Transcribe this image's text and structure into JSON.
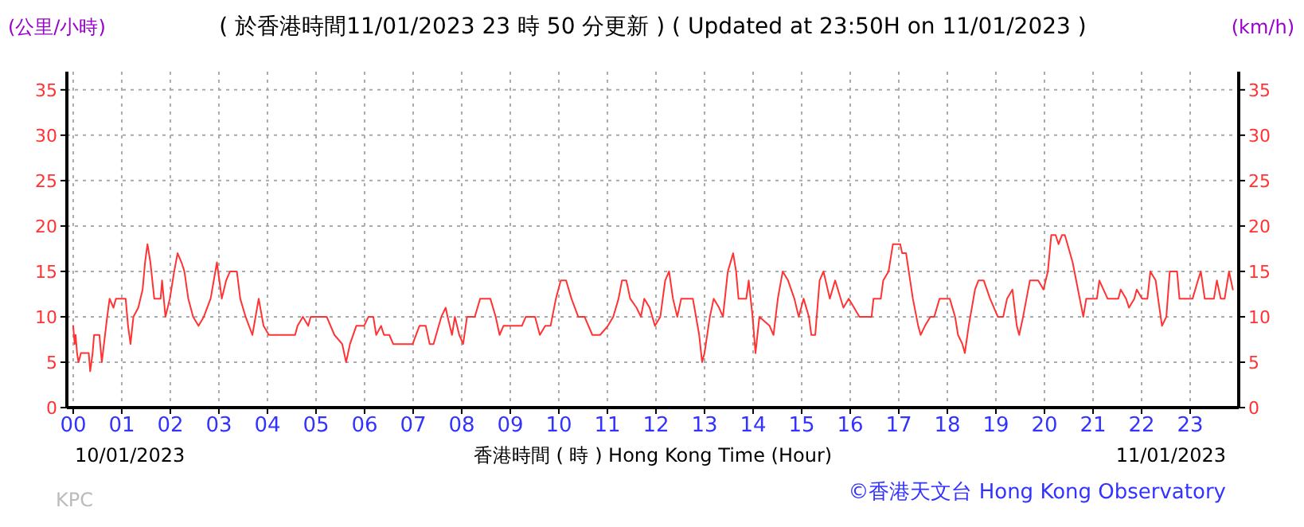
{
  "chart_data": {
    "type": "line",
    "title": "( 於香港時間11/01/2023 23 時 50 分更新 ) ( Updated at 23:50H on 11/01/2023 )",
    "ylabel": "(公里/小時)",
    "y2label": "(km/h)",
    "xlabel": "香港時間 ( 時 ) Hong Kong Time (Hour)",
    "annotations": [
      "10/01/2023",
      "11/01/2023",
      "©香港天文台 Hong Kong Observatory",
      "KPC"
    ],
    "xlim": [
      -0.13,
      24
    ],
    "xticks": [
      {
        "value": 0,
        "label": "00"
      },
      {
        "value": 1,
        "label": "01"
      },
      {
        "value": 2,
        "label": "02"
      },
      {
        "value": 3,
        "label": "03"
      },
      {
        "value": 4,
        "label": "04"
      },
      {
        "value": 5,
        "label": "05"
      },
      {
        "value": 6,
        "label": "06"
      },
      {
        "value": 7,
        "label": "07"
      },
      {
        "value": 8,
        "label": "08"
      },
      {
        "value": 9,
        "label": "09"
      },
      {
        "value": 10,
        "label": "10"
      },
      {
        "value": 11,
        "label": "11"
      },
      {
        "value": 12,
        "label": "12"
      },
      {
        "value": 13,
        "label": "13"
      },
      {
        "value": 14,
        "label": "14"
      },
      {
        "value": 15,
        "label": "15"
      },
      {
        "value": 16,
        "label": "16"
      },
      {
        "value": 17,
        "label": "17"
      },
      {
        "value": 18,
        "label": "18"
      },
      {
        "value": 19,
        "label": "19"
      },
      {
        "value": 20,
        "label": "20"
      },
      {
        "value": 21,
        "label": "21"
      },
      {
        "value": 22,
        "label": "22"
      },
      {
        "value": 23,
        "label": "23"
      }
    ],
    "ylim": [
      0,
      37
    ],
    "yticks": [
      0,
      5,
      10,
      15,
      20,
      25,
      30,
      35
    ],
    "y2lim": [
      0,
      37
    ],
    "y2ticks": [
      0,
      5,
      10,
      15,
      20,
      25,
      30,
      35
    ],
    "grid": true,
    "marker": "none",
    "line_style": "solid",
    "series": [
      {
        "color": "#ff3333",
        "x": [
          0,
          0.03,
          0.05,
          0.08,
          0.11,
          0.16,
          0.32,
          0.35,
          0.4,
          0.43,
          0.54,
          0.59,
          0.7,
          0.75,
          0.83,
          0.88,
          0.97,
          1.08,
          1.13,
          1.18,
          1.24,
          1.34,
          1.43,
          1.48,
          1.53,
          1.59,
          1.67,
          1.8,
          1.83,
          1.9,
          1.99,
          2.08,
          2.15,
          2.23,
          2.29,
          2.37,
          2.47,
          2.58,
          2.69,
          2.83,
          2.96,
          3.06,
          3.15,
          3.23,
          3.37,
          3.44,
          3.55,
          3.69,
          3.82,
          3.92,
          4.03,
          4.57,
          4.62,
          4.73,
          4.84,
          4.89,
          5.22,
          5.38,
          5.54,
          5.62,
          5.7,
          5.83,
          5.99,
          6.08,
          6.18,
          6.24,
          6.34,
          6.4,
          6.51,
          6.59,
          6.99,
          7.13,
          7.26,
          7.34,
          7.42,
          7.58,
          7.67,
          7.71,
          7.8,
          7.86,
          7.95,
          8.03,
          8.11,
          8.27,
          8.38,
          8.59,
          8.7,
          8.78,
          8.86,
          9.24,
          9.32,
          9.51,
          9.61,
          9.72,
          9.83,
          9.94,
          10.04,
          10.15,
          10.26,
          10.4,
          10.53,
          10.69,
          10.85,
          11.01,
          11.12,
          11.23,
          11.3,
          11.39,
          11.47,
          11.6,
          11.69,
          11.76,
          11.87,
          11.98,
          12.09,
          12.19,
          12.27,
          12.35,
          12.44,
          12.52,
          12.76,
          12.89,
          12.95,
          13.0,
          13.11,
          13.19,
          13.3,
          13.38,
          13.48,
          13.59,
          13.65,
          13.7,
          13.86,
          13.91,
          13.99,
          14.05,
          14.13,
          14.34,
          14.42,
          14.51,
          14.61,
          14.72,
          14.85,
          14.94,
          15.04,
          15.15,
          15.2,
          15.28,
          15.37,
          15.45,
          15.58,
          15.69,
          15.86,
          15.97,
          16.08,
          16.19,
          16.44,
          16.48,
          16.63,
          16.68,
          16.79,
          16.88,
          17.03,
          17.07,
          17.15,
          17.29,
          17.4,
          17.45,
          17.54,
          17.65,
          17.73,
          17.84,
          18.05,
          18.16,
          18.22,
          18.31,
          18.36,
          18.44,
          18.57,
          18.64,
          18.75,
          18.88,
          19.04,
          19.15,
          19.23,
          19.34,
          19.43,
          19.48,
          19.56,
          19.7,
          19.87,
          19.98,
          20.07,
          20.14,
          20.23,
          20.29,
          20.36,
          20.42,
          20.58,
          20.69,
          20.8,
          20.86,
          21.08,
          21.13,
          21.3,
          21.52,
          21.57,
          21.68,
          21.74,
          21.85,
          21.9,
          22.01,
          22.12,
          22.18,
          22.29,
          22.34,
          22.42,
          22.51,
          22.58,
          22.73,
          22.78,
          23.05,
          23.16,
          23.22,
          23.3,
          23.49,
          23.55,
          23.63,
          23.71,
          23.8,
          23.88
        ],
        "values": [
          9,
          7,
          8,
          6,
          5,
          6,
          6,
          4,
          6,
          8,
          8,
          5,
          10,
          12,
          11,
          12,
          12,
          12,
          9,
          7,
          10,
          11,
          13,
          16,
          18,
          16,
          12,
          12,
          14,
          10,
          12,
          15,
          17,
          16,
          15,
          12,
          10,
          9,
          10,
          12,
          16,
          12,
          14,
          15,
          15,
          12,
          10,
          8,
          12,
          9,
          8,
          8,
          9,
          10,
          9,
          10,
          10,
          8,
          7,
          5,
          7,
          9,
          9,
          10,
          10,
          8,
          9,
          8,
          8,
          7,
          7,
          9,
          9,
          7,
          7,
          10,
          11,
          10,
          8,
          10,
          8,
          7,
          10,
          10,
          12,
          12,
          10,
          8,
          9,
          9,
          10,
          10,
          8,
          9,
          9,
          12,
          14,
          14,
          12,
          10,
          10,
          8,
          8,
          9,
          10,
          12,
          14,
          14,
          12,
          11,
          10,
          12,
          11,
          9,
          10,
          14,
          15,
          12,
          10,
          12,
          12,
          8,
          5,
          6,
          10,
          12,
          11,
          10,
          15,
          17,
          15,
          12,
          12,
          14,
          10,
          6,
          10,
          9,
          8,
          12,
          15,
          14,
          12,
          10,
          12,
          10,
          8,
          8,
          14,
          15,
          12,
          14,
          11,
          12,
          11,
          10,
          10,
          12,
          12,
          14,
          15,
          18,
          18,
          17,
          17,
          12,
          9,
          8,
          9,
          10,
          10,
          12,
          12,
          10,
          8,
          7,
          6,
          9,
          13,
          14,
          14,
          12,
          10,
          10,
          12,
          13,
          9,
          8,
          10,
          14,
          14,
          13,
          15,
          19,
          19,
          18,
          19,
          19,
          16,
          13,
          10,
          12,
          12,
          14,
          12,
          12,
          13,
          12,
          11,
          12,
          13,
          12,
          12,
          15,
          14,
          12,
          9,
          10,
          15,
          15,
          12,
          12,
          14,
          15,
          12,
          12,
          14,
          12,
          12,
          15,
          13
        ]
      }
    ]
  }
}
